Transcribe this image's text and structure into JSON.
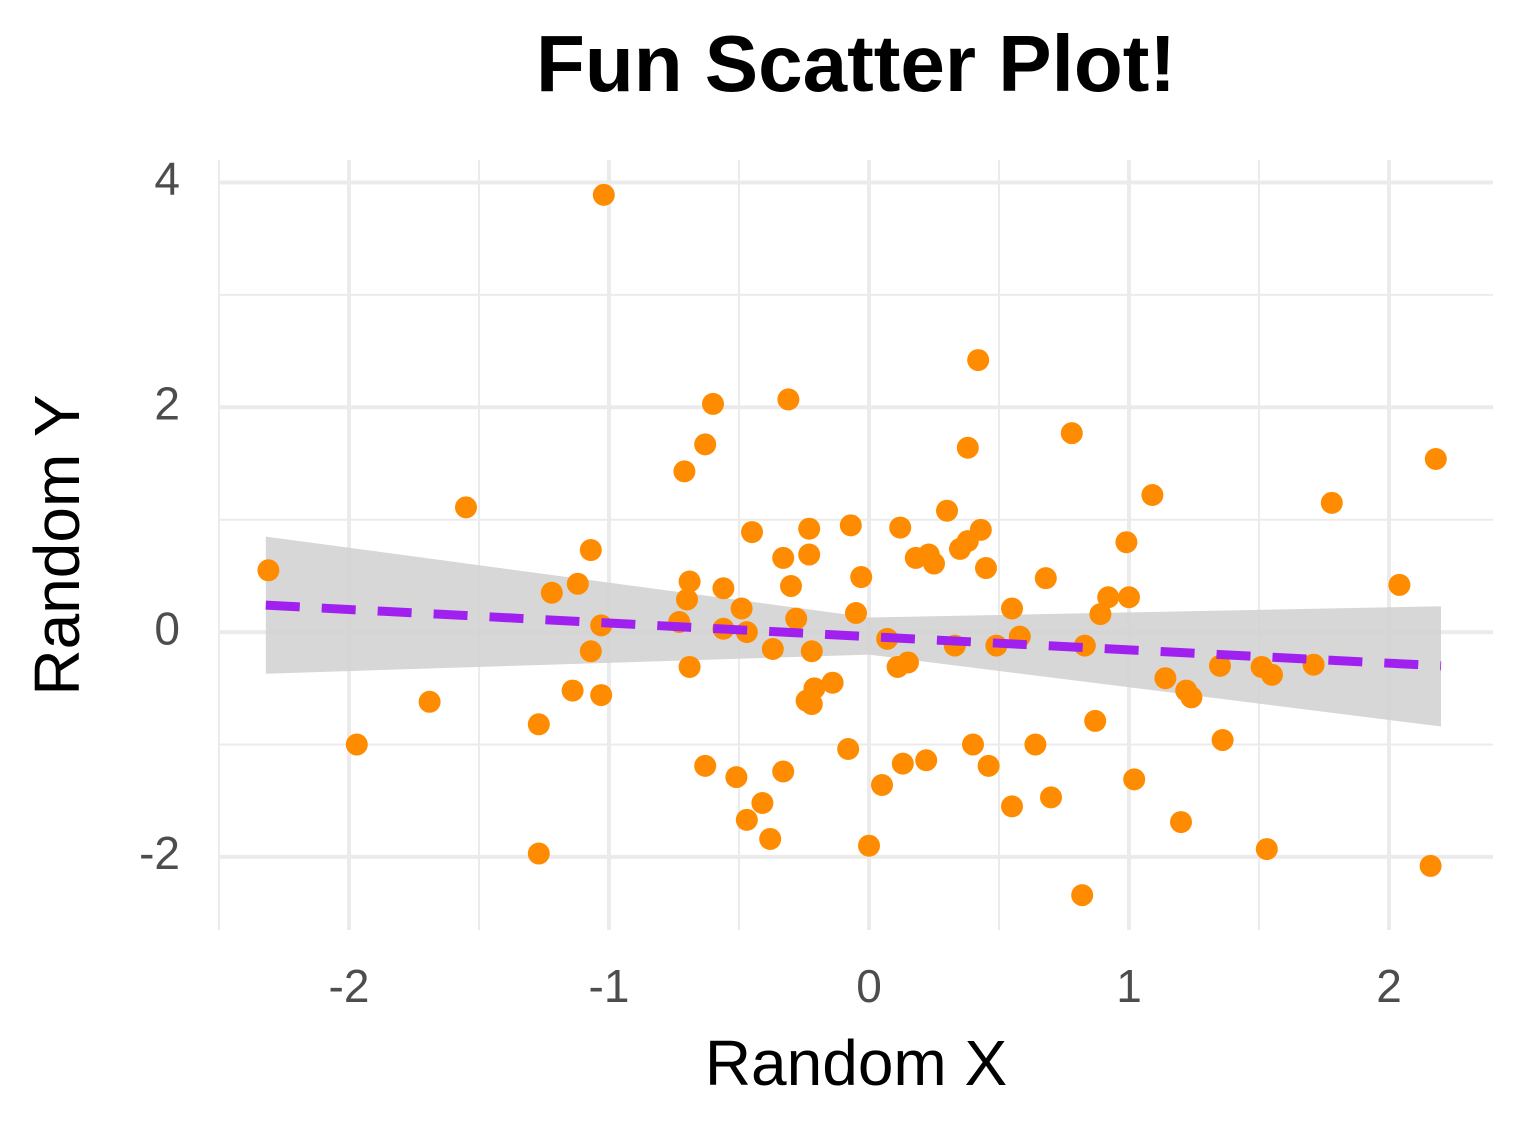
{
  "chart_data": {
    "type": "scatter",
    "title": "Fun Scatter Plot!",
    "xlabel": "Random X",
    "ylabel": "Random Y",
    "xlim": [
      -2.5,
      2.4
    ],
    "ylim": [
      -2.65,
      4.2
    ],
    "xticks": [
      -2,
      -1,
      0,
      1,
      2
    ],
    "yticks": [
      -2,
      0,
      2,
      4
    ],
    "grid": true,
    "color": "#ff8c00",
    "x": [
      -2.31,
      -1.97,
      -1.69,
      -1.55,
      -1.27,
      -1.27,
      -1.22,
      -1.14,
      -1.12,
      -1.07,
      -1.07,
      -1.03,
      -1.03,
      -1.02,
      -0.73,
      -0.71,
      -0.7,
      -0.69,
      -0.69,
      -0.63,
      -0.63,
      -0.6,
      -0.56,
      -0.56,
      -0.51,
      -0.49,
      -0.47,
      -0.47,
      -0.45,
      -0.41,
      -0.38,
      -0.37,
      -0.33,
      -0.33,
      -0.31,
      -0.3,
      -0.28,
      -0.24,
      -0.23,
      -0.23,
      -0.22,
      -0.22,
      -0.21,
      -0.14,
      -0.08,
      -0.07,
      -0.05,
      -0.03,
      0.0,
      0.05,
      0.07,
      0.11,
      0.12,
      0.13,
      0.15,
      0.18,
      0.22,
      0.23,
      0.25,
      0.3,
      0.33,
      0.35,
      0.38,
      0.38,
      0.4,
      0.42,
      0.43,
      0.45,
      0.46,
      0.49,
      0.55,
      0.55,
      0.58,
      0.64,
      0.68,
      0.7,
      0.78,
      0.83,
      0.82,
      0.87,
      0.89,
      0.92,
      0.99,
      1.0,
      1.02,
      1.09,
      1.14,
      1.2,
      1.22,
      1.24,
      1.35,
      1.36,
      1.51,
      1.53,
      1.55,
      1.71,
      1.78,
      2.04,
      2.16,
      2.18
    ],
    "values": [
      0.55,
      -1.0,
      -0.62,
      1.11,
      -0.82,
      -1.97,
      0.35,
      -0.52,
      0.43,
      0.73,
      -0.17,
      0.06,
      -0.56,
      3.89,
      0.09,
      1.43,
      0.29,
      0.45,
      -0.31,
      1.67,
      -1.19,
      2.03,
      0.39,
      0.03,
      -1.29,
      0.21,
      -1.67,
      0.0,
      0.89,
      -1.52,
      -1.84,
      -0.15,
      -1.24,
      0.66,
      2.07,
      0.41,
      0.12,
      -0.61,
      0.92,
      0.69,
      -0.17,
      -0.64,
      -0.5,
      -0.45,
      -1.04,
      0.95,
      0.17,
      0.49,
      -1.9,
      -1.36,
      -0.06,
      -0.31,
      0.93,
      -1.17,
      -0.27,
      0.66,
      -1.14,
      0.69,
      0.61,
      1.08,
      -0.12,
      0.74,
      0.81,
      1.64,
      -1.0,
      2.42,
      0.91,
      0.57,
      -1.19,
      -0.12,
      -1.55,
      0.21,
      -0.04,
      -1.0,
      0.48,
      -1.47,
      1.77,
      -0.12,
      -2.34,
      -0.79,
      0.16,
      0.31,
      0.8,
      0.31,
      -1.31,
      1.22,
      -0.41,
      -1.69,
      -0.52,
      -0.58,
      -0.3,
      -0.96,
      -0.31,
      -1.93,
      -0.38,
      -0.29,
      1.15,
      0.42,
      -2.08,
      1.54
    ],
    "fit": {
      "color": "#a020f0",
      "band_color": "#d3d3d3",
      "x": [
        -2.32,
        0,
        2.2
      ],
      "y": [
        0.24,
        -0.04,
        -0.3
      ],
      "lower": [
        -0.37,
        -0.2,
        -0.84
      ],
      "upper": [
        0.85,
        0.13,
        0.23
      ]
    }
  }
}
